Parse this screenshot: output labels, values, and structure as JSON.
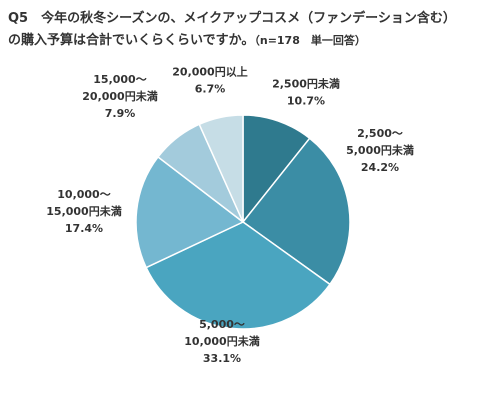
{
  "title": {
    "line1": "Q5　今年の秋冬シーズンの、メイクアップコスメ（ファンデーション含む）",
    "line2": "の購入予算は合計でいくらくらいですか。",
    "note": "（n=178　単一回答）"
  },
  "chart_data": {
    "type": "pie",
    "title": "Q5　今年の秋冬シーズンの、メイクアップコスメ（ファンデーション含む）の購入予算は合計でいくらくらいですか。",
    "n_note": "（n=178　単一回答）",
    "slices": [
      {
        "label_lines": [
          "2,500円未満"
        ],
        "value": 10.7,
        "value_label": "10.7%",
        "color": "#2f7a8e"
      },
      {
        "label_lines": [
          "2,500～",
          "5,000円未満"
        ],
        "value": 24.2,
        "value_label": "24.2%",
        "color": "#3b8da5"
      },
      {
        "label_lines": [
          "5,000～",
          "10,000円未満"
        ],
        "value": 33.1,
        "value_label": "33.1%",
        "color": "#4aa5c0"
      },
      {
        "label_lines": [
          "10,000～",
          "15,000円未満"
        ],
        "value": 17.4,
        "value_label": "17.4%",
        "color": "#74b7d0"
      },
      {
        "label_lines": [
          "15,000～",
          "20,000円未満"
        ],
        "value": 7.9,
        "value_label": "7.9%",
        "color": "#a3cbdc"
      },
      {
        "label_lines": [
          "20,000円以上"
        ],
        "value": 6.7,
        "value_label": "6.7%",
        "color": "#c6dde6"
      }
    ],
    "start_angle": "12 o'clock",
    "direction": "clockwise"
  }
}
